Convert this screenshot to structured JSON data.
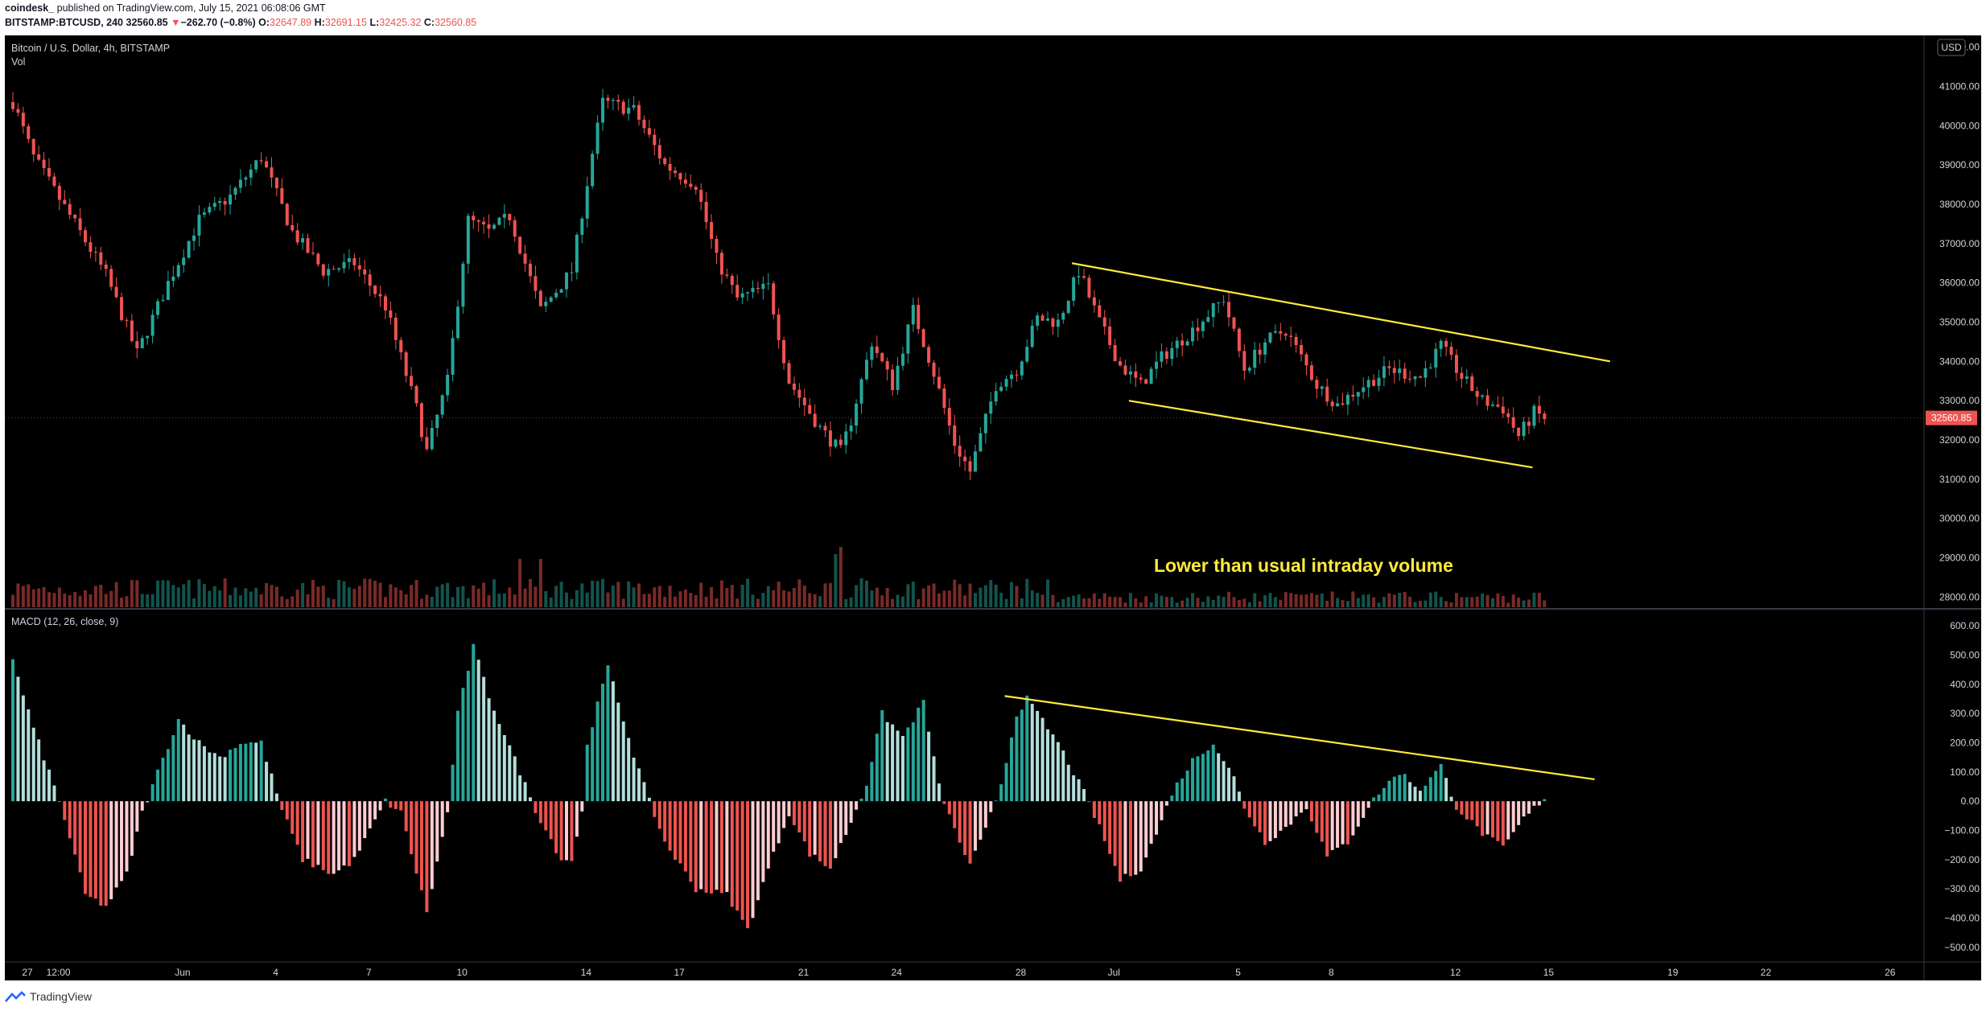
{
  "header": {
    "author": "coindesk_",
    "published": "published on TradingView.com, July 15, 2021 06:08:06 GMT",
    "symbol_line": "BITSTAMP:BTCUSD, 240",
    "last": "32560.85",
    "change_arrow": "▼",
    "change": "−262.70 (−0.8%)",
    "o_label": "O:",
    "o": "32647.89",
    "h_label": "H:",
    "h": "32691.15",
    "l_label": "L:",
    "l": "32425.32",
    "c_label": "C:",
    "c": "32560.85"
  },
  "chart_data": [
    {
      "type": "candlestick",
      "title": "Bitcoin / U.S. Dollar, 4h, BITSTAMP",
      "legend_secondary": "Vol",
      "currency_badge": "USD",
      "price_label": "32560.85",
      "ylim": [
        27700,
        42300
      ],
      "y_ticks": [
        "42000.00",
        "41000.00",
        "40000.00",
        "39000.00",
        "38000.00",
        "37000.00",
        "36000.00",
        "35000.00",
        "34000.00",
        "33000.00",
        "32000.00",
        "31000.00",
        "30000.00",
        "29000.00",
        "28000.00"
      ],
      "x_ticks": [
        "27",
        "12:00",
        "Jun",
        "4",
        "7",
        "10",
        "14",
        "17",
        "21",
        "24",
        "28",
        "Jul",
        "5",
        "8",
        "12",
        "15",
        "19",
        "22",
        "26"
      ],
      "x_tick_bar_index": [
        0,
        6,
        30,
        48,
        66,
        84,
        108,
        126,
        150,
        168,
        192,
        210,
        234,
        252,
        276,
        294,
        318,
        336,
        360
      ],
      "anchors": [
        {
          "i": 0,
          "p": 40600
        },
        {
          "i": 4,
          "p": 39200
        },
        {
          "i": 12,
          "p": 37500
        },
        {
          "i": 18,
          "p": 36200
        },
        {
          "i": 24,
          "p": 34200
        },
        {
          "i": 30,
          "p": 36000
        },
        {
          "i": 36,
          "p": 37600
        },
        {
          "i": 42,
          "p": 38200
        },
        {
          "i": 48,
          "p": 39200
        },
        {
          "i": 54,
          "p": 37300
        },
        {
          "i": 60,
          "p": 36300
        },
        {
          "i": 66,
          "p": 36500
        },
        {
          "i": 72,
          "p": 35400
        },
        {
          "i": 78,
          "p": 32800
        },
        {
          "i": 80,
          "p": 31700
        },
        {
          "i": 84,
          "p": 33500
        },
        {
          "i": 88,
          "p": 37600
        },
        {
          "i": 92,
          "p": 37300
        },
        {
          "i": 96,
          "p": 37700
        },
        {
          "i": 102,
          "p": 35300
        },
        {
          "i": 108,
          "p": 36300
        },
        {
          "i": 112,
          "p": 39300
        },
        {
          "i": 114,
          "p": 40600
        },
        {
          "i": 120,
          "p": 40400
        },
        {
          "i": 126,
          "p": 39000
        },
        {
          "i": 132,
          "p": 38500
        },
        {
          "i": 136,
          "p": 36600
        },
        {
          "i": 140,
          "p": 35600
        },
        {
          "i": 146,
          "p": 35900
        },
        {
          "i": 150,
          "p": 33500
        },
        {
          "i": 156,
          "p": 32300
        },
        {
          "i": 160,
          "p": 31700
        },
        {
          "i": 162,
          "p": 32500
        },
        {
          "i": 166,
          "p": 34500
        },
        {
          "i": 170,
          "p": 33400
        },
        {
          "i": 174,
          "p": 35300
        },
        {
          "i": 178,
          "p": 33700
        },
        {
          "i": 182,
          "p": 31900
        },
        {
          "i": 185,
          "p": 31200
        },
        {
          "i": 190,
          "p": 33400
        },
        {
          "i": 194,
          "p": 33800
        },
        {
          "i": 198,
          "p": 35100
        },
        {
          "i": 202,
          "p": 35000
        },
        {
          "i": 206,
          "p": 36300
        },
        {
          "i": 210,
          "p": 35000
        },
        {
          "i": 214,
          "p": 33900
        },
        {
          "i": 218,
          "p": 33400
        },
        {
          "i": 222,
          "p": 34100
        },
        {
          "i": 228,
          "p": 34800
        },
        {
          "i": 234,
          "p": 35600
        },
        {
          "i": 238,
          "p": 33800
        },
        {
          "i": 242,
          "p": 34500
        },
        {
          "i": 246,
          "p": 34800
        },
        {
          "i": 252,
          "p": 33400
        },
        {
          "i": 256,
          "p": 32900
        },
        {
          "i": 260,
          "p": 33300
        },
        {
          "i": 266,
          "p": 33800
        },
        {
          "i": 272,
          "p": 33600
        },
        {
          "i": 276,
          "p": 34400
        },
        {
          "i": 280,
          "p": 33600
        },
        {
          "i": 284,
          "p": 33000
        },
        {
          "i": 288,
          "p": 32800
        },
        {
          "i": 291,
          "p": 32100
        },
        {
          "i": 294,
          "p": 32700
        },
        {
          "i": 296,
          "p": 32560
        }
      ],
      "trendlines": [
        {
          "i1": 205,
          "p1": 36500,
          "i2": 309,
          "p2": 34000
        },
        {
          "i1": 216,
          "p1": 33000,
          "i2": 294,
          "p2": 31300
        }
      ],
      "annotation": "Lower than usual intraday volume"
    },
    {
      "type": "bar",
      "title": "MACD (12, 26, close, 9)",
      "ylim": [
        -550,
        650
      ],
      "y_ticks": [
        "600.00",
        "500.00",
        "400.00",
        "300.00",
        "200.00",
        "100.00",
        "0.00",
        "−100.00",
        "−200.00",
        "−300.00",
        "−400.00",
        "−500.00"
      ],
      "anchors": [
        {
          "i": 0,
          "v": 480
        },
        {
          "i": 4,
          "v": 250
        },
        {
          "i": 8,
          "v": 50
        },
        {
          "i": 10,
          "v": -60
        },
        {
          "i": 14,
          "v": -320
        },
        {
          "i": 18,
          "v": -360
        },
        {
          "i": 22,
          "v": -250
        },
        {
          "i": 25,
          "v": -40
        },
        {
          "i": 28,
          "v": 100
        },
        {
          "i": 32,
          "v": 280
        },
        {
          "i": 36,
          "v": 200
        },
        {
          "i": 40,
          "v": 150
        },
        {
          "i": 44,
          "v": 200
        },
        {
          "i": 48,
          "v": 200
        },
        {
          "i": 52,
          "v": -30
        },
        {
          "i": 56,
          "v": -200
        },
        {
          "i": 62,
          "v": -250
        },
        {
          "i": 66,
          "v": -200
        },
        {
          "i": 72,
          "v": 0
        },
        {
          "i": 75,
          "v": -40
        },
        {
          "i": 80,
          "v": -380
        },
        {
          "i": 84,
          "v": -40
        },
        {
          "i": 86,
          "v": 300
        },
        {
          "i": 89,
          "v": 530
        },
        {
          "i": 92,
          "v": 360
        },
        {
          "i": 98,
          "v": 100
        },
        {
          "i": 101,
          "v": -30
        },
        {
          "i": 106,
          "v": -200
        },
        {
          "i": 108,
          "v": -200
        },
        {
          "i": 110,
          "v": -40
        },
        {
          "i": 111,
          "v": 200
        },
        {
          "i": 115,
          "v": 460
        },
        {
          "i": 120,
          "v": 160
        },
        {
          "i": 123,
          "v": 0
        },
        {
          "i": 126,
          "v": -140
        },
        {
          "i": 132,
          "v": -300
        },
        {
          "i": 138,
          "v": -320
        },
        {
          "i": 142,
          "v": -440
        },
        {
          "i": 146,
          "v": -230
        },
        {
          "i": 150,
          "v": -40
        },
        {
          "i": 154,
          "v": -180
        },
        {
          "i": 158,
          "v": -230
        },
        {
          "i": 162,
          "v": -70
        },
        {
          "i": 165,
          "v": 60
        },
        {
          "i": 168,
          "v": 300
        },
        {
          "i": 172,
          "v": 220
        },
        {
          "i": 176,
          "v": 340
        },
        {
          "i": 179,
          "v": 50
        },
        {
          "i": 182,
          "v": -100
        },
        {
          "i": 185,
          "v": -220
        },
        {
          "i": 188,
          "v": -100
        },
        {
          "i": 191,
          "v": 60
        },
        {
          "i": 194,
          "v": 300
        },
        {
          "i": 196,
          "v": 350
        },
        {
          "i": 202,
          "v": 200
        },
        {
          "i": 207,
          "v": 30
        },
        {
          "i": 210,
          "v": -90
        },
        {
          "i": 214,
          "v": -270
        },
        {
          "i": 218,
          "v": -230
        },
        {
          "i": 222,
          "v": -70
        },
        {
          "i": 224,
          "v": 30
        },
        {
          "i": 228,
          "v": 140
        },
        {
          "i": 232,
          "v": 200
        },
        {
          "i": 236,
          "v": 80
        },
        {
          "i": 238,
          "v": -20
        },
        {
          "i": 242,
          "v": -140
        },
        {
          "i": 246,
          "v": -90
        },
        {
          "i": 250,
          "v": -20
        },
        {
          "i": 252,
          "v": -100
        },
        {
          "i": 254,
          "v": -190
        },
        {
          "i": 258,
          "v": -140
        },
        {
          "i": 262,
          "v": -20
        },
        {
          "i": 264,
          "v": 30
        },
        {
          "i": 268,
          "v": 100
        },
        {
          "i": 272,
          "v": 40
        },
        {
          "i": 276,
          "v": 120
        },
        {
          "i": 279,
          "v": -20
        },
        {
          "i": 284,
          "v": -110
        },
        {
          "i": 288,
          "v": -160
        },
        {
          "i": 292,
          "v": -60
        },
        {
          "i": 296,
          "v": 12
        }
      ],
      "trendline": {
        "i1": 192,
        "v1": 360,
        "i2": 306,
        "v2": 75
      }
    }
  ],
  "footer": {
    "brand": "TradingView"
  },
  "colors": {
    "bg": "#000000",
    "up": "#26a69a",
    "down": "#ef5350",
    "up_light": "#b2dfdb",
    "down_light": "#ffcdd2",
    "trend": "#ffeb3b",
    "axis_text": "#d1d4dc",
    "price_badge": "#ef5350"
  }
}
